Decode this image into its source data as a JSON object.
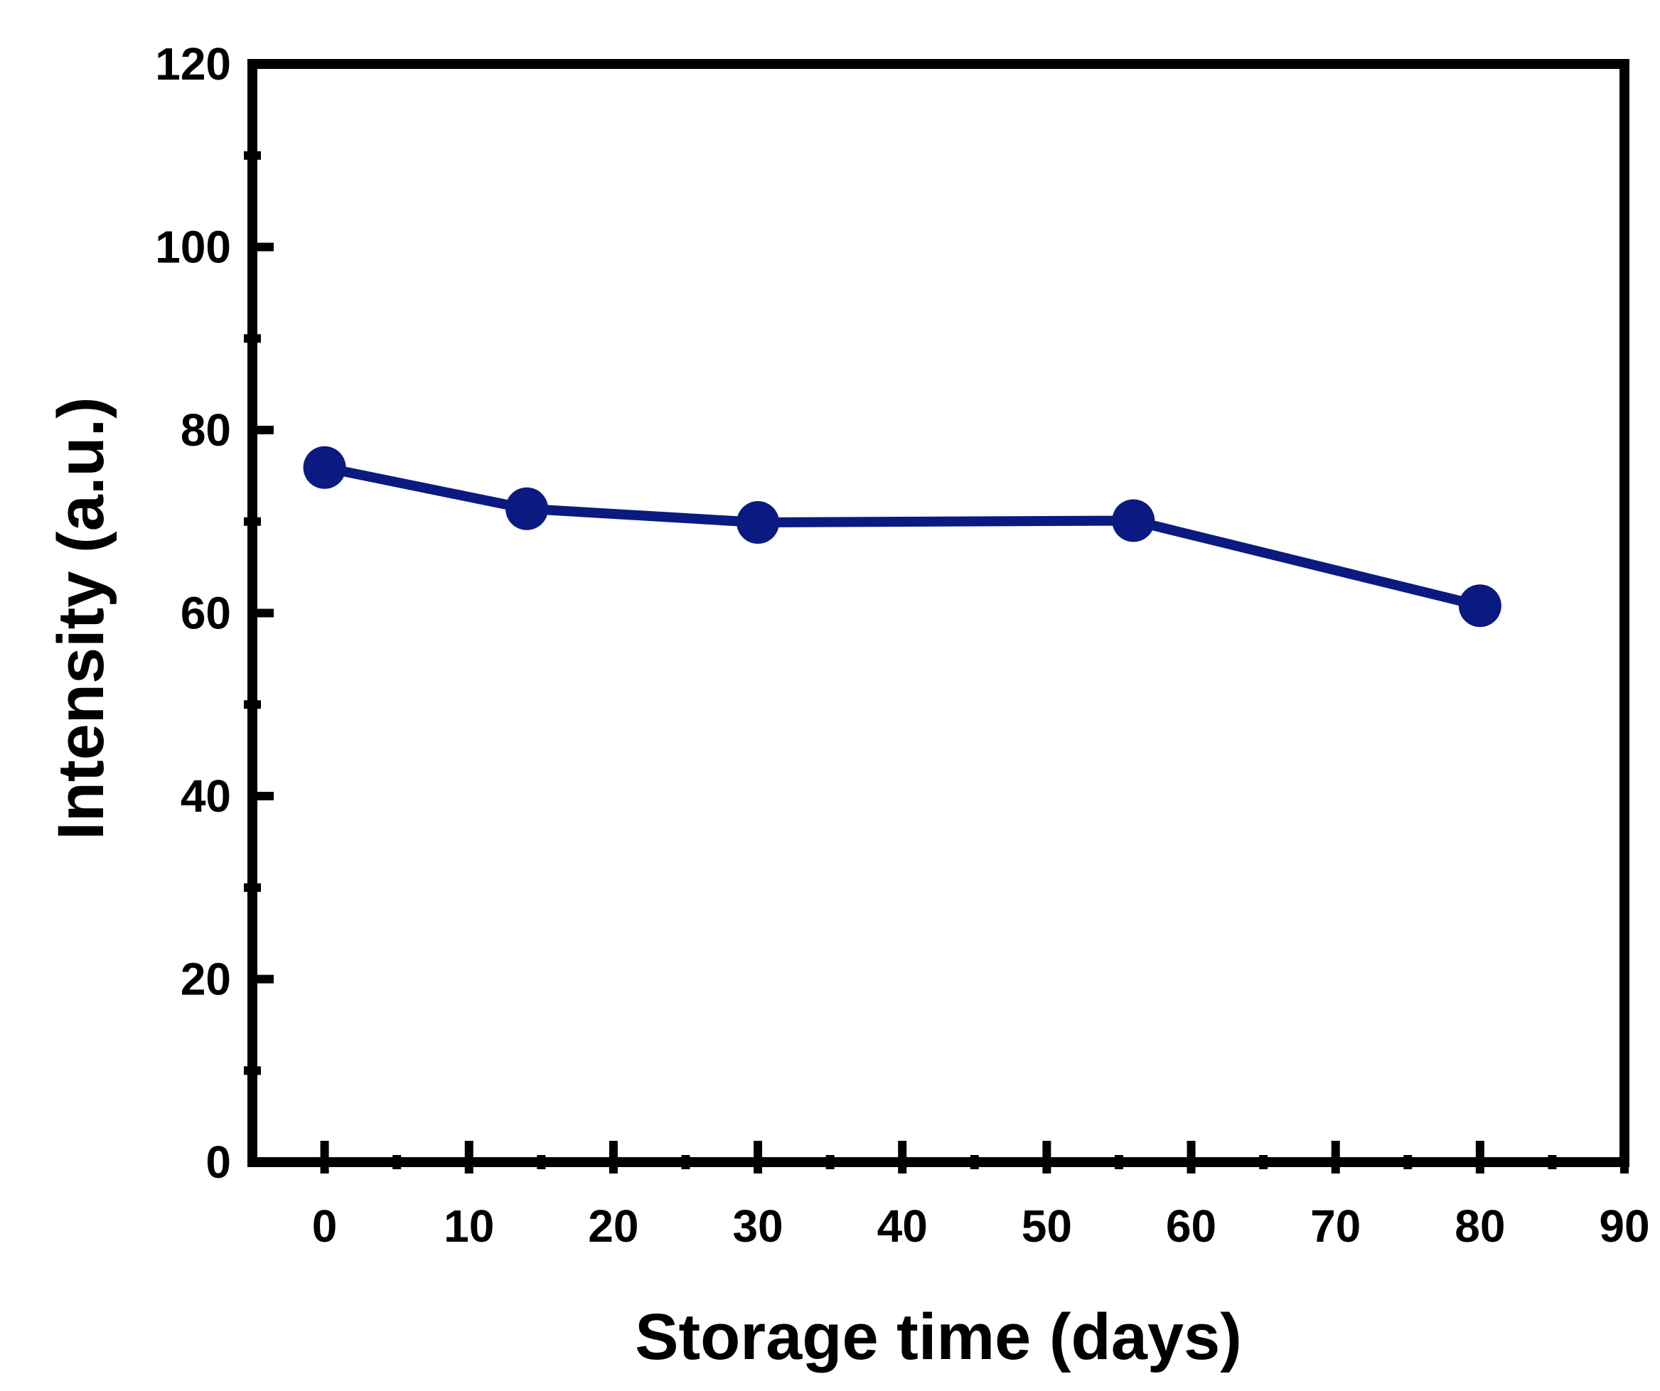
{
  "chart_data": {
    "type": "line",
    "xlabel": "Storage time (days)",
    "ylabel": "Intensity (a.u.)",
    "xlim": [
      -5,
      90
    ],
    "ylim": [
      0,
      120
    ],
    "x_ticks": [
      0,
      10,
      20,
      30,
      40,
      50,
      60,
      70,
      80,
      90
    ],
    "y_ticks": [
      0,
      20,
      40,
      60,
      80,
      100,
      120
    ],
    "series": [
      {
        "x": [
          0,
          14,
          30,
          56,
          80
        ],
        "y": [
          75.9,
          71.4,
          69.9,
          70.1,
          60.8
        ],
        "color": "#0a1a80",
        "marker": "circle"
      }
    ],
    "grid": false,
    "legend": "none"
  }
}
